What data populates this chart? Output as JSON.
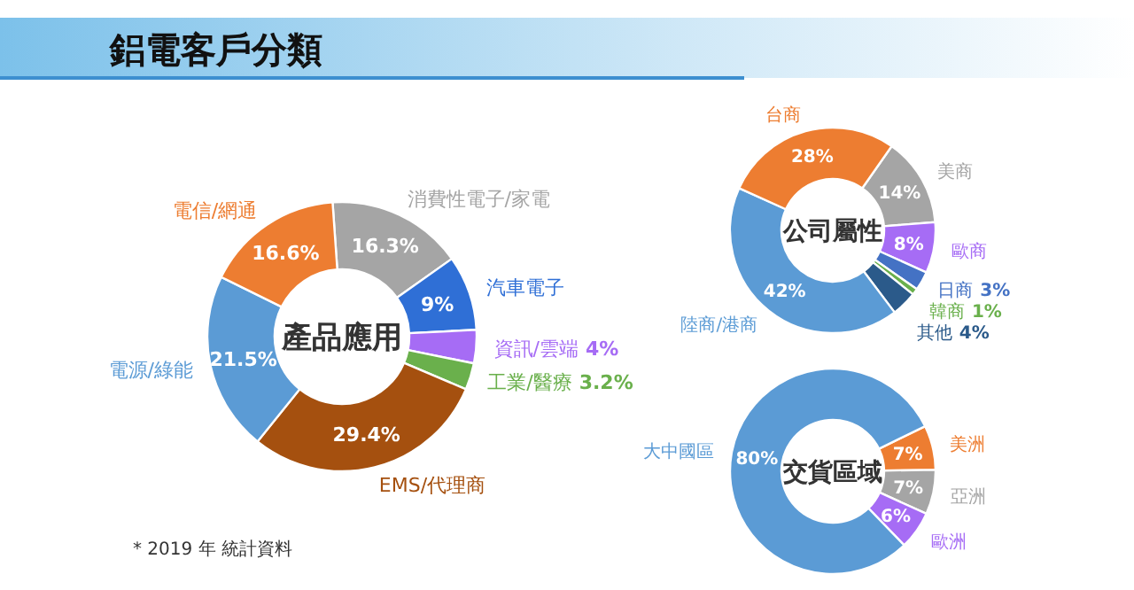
{
  "chart_data": [
    {
      "type": "other",
      "title": "鋁電客戶分類",
      "annotations": [
        "* 2019 年 統計資料"
      ]
    },
    {
      "type": "donut",
      "title": "產品應用",
      "categories": [
        "消費性電子/家電",
        "汽車電子",
        "資訊/雲端",
        "工業/醫療",
        "EMS/代理商",
        "電源/綠能",
        "電信/網通"
      ],
      "values": [
        16.3,
        9,
        4,
        3.2,
        29.4,
        21.5,
        16.6
      ],
      "value_labels": [
        "16.3%",
        "9%",
        "4%",
        "3.2%",
        "29.4%",
        "21.5%",
        "16.6%"
      ],
      "colors": [
        "#a5a5a5",
        "#2f6fd6",
        "#a66cf5",
        "#6ab04c",
        "#a5500f",
        "#5b9bd5",
        "#ed7d31"
      ]
    },
    {
      "type": "donut",
      "title": "公司屬性",
      "categories": [
        "美商",
        "歐商",
        "日商",
        "韓商",
        "其他",
        "陸商/港商",
        "台商"
      ],
      "values": [
        14,
        8,
        3,
        1,
        4,
        42,
        28
      ],
      "value_labels": [
        "14%",
        "8%",
        "3%",
        "1%",
        "4%",
        "42%",
        "28%"
      ],
      "colors": [
        "#a5a5a5",
        "#a66cf5",
        "#4472c4",
        "#6ab04c",
        "#2b5a8a",
        "#5b9bd5",
        "#ed7d31"
      ]
    },
    {
      "type": "donut",
      "title": "交貨區域",
      "categories": [
        "美洲",
        "亞洲",
        "歐洲",
        "大中國區"
      ],
      "values": [
        7,
        7,
        6,
        80
      ],
      "value_labels": [
        "7%",
        "7%",
        "6%",
        "80%"
      ],
      "colors": [
        "#ed7d31",
        "#a5a5a5",
        "#a66cf5",
        "#5b9bd5"
      ]
    }
  ]
}
